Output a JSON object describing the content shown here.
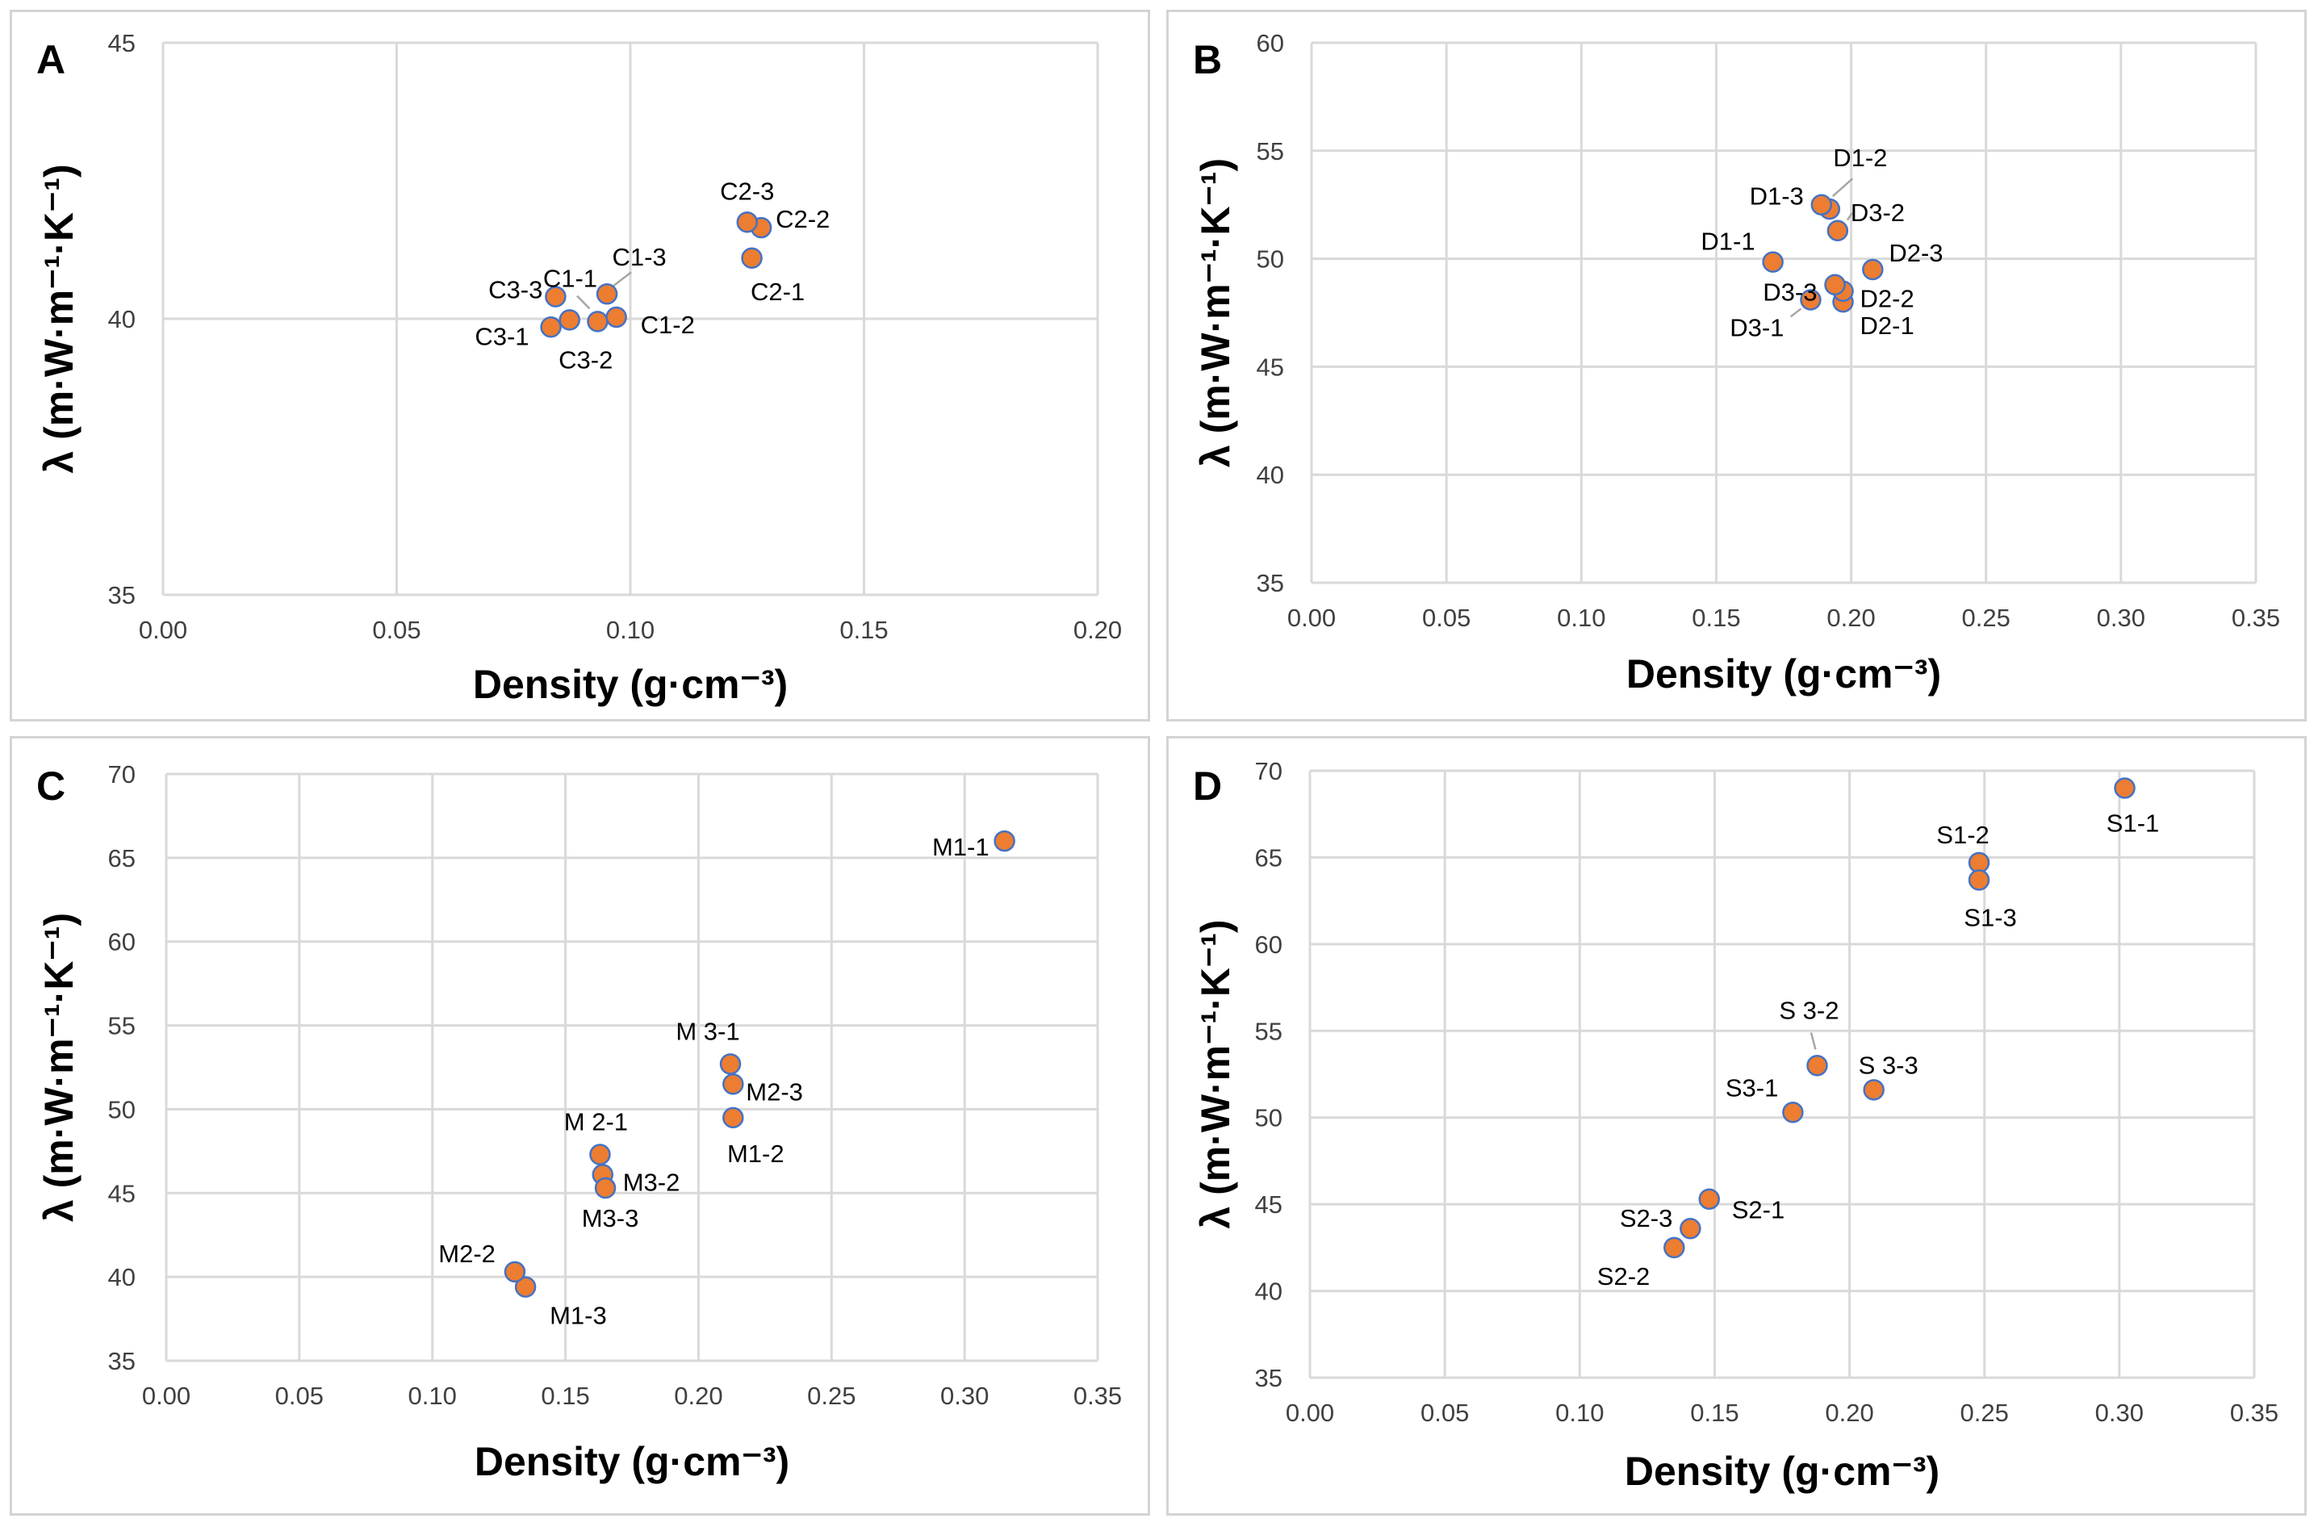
{
  "chart_data": [
    {
      "panel": "A",
      "type": "scatter",
      "xlabel": "Density (g·cm⁻³)",
      "ylabel": "λ (m·W·m⁻¹·K⁻¹)",
      "xlim": [
        0,
        0.2
      ],
      "ylim": [
        35,
        45
      ],
      "xticks": [
        "0.00",
        "0.05",
        "0.10",
        "0.15",
        "0.20"
      ],
      "yticks": [
        "35",
        "40",
        "45"
      ],
      "points": [
        {
          "label": "C1-1",
          "x": 0.093,
          "y": 39.95
        },
        {
          "label": "C1-2",
          "x": 0.097,
          "y": 40.03
        },
        {
          "label": "C1-3",
          "x": 0.095,
          "y": 40.45
        },
        {
          "label": "C2-1",
          "x": 0.126,
          "y": 41.1
        },
        {
          "label": "C2-2",
          "x": 0.128,
          "y": 41.65
        },
        {
          "label": "C2-3",
          "x": 0.125,
          "y": 41.75
        },
        {
          "label": "C3-1",
          "x": 0.083,
          "y": 39.85
        },
        {
          "label": "C3-2",
          "x": 0.087,
          "y": 39.98
        },
        {
          "label": "C3-3",
          "x": 0.084,
          "y": 40.4
        }
      ]
    },
    {
      "panel": "B",
      "type": "scatter",
      "xlabel": "Density (g·cm⁻³)",
      "ylabel": "λ (m·W·m⁻¹·K⁻¹)",
      "xlim": [
        0,
        0.35
      ],
      "ylim": [
        35,
        60
      ],
      "xticks": [
        "0.00",
        "0.05",
        "0.10",
        "0.15",
        "0.20",
        "0.25",
        "0.30",
        "0.35"
      ],
      "yticks": [
        "35",
        "40",
        "45",
        "50",
        "55",
        "60"
      ],
      "points": [
        {
          "label": "D1-1",
          "x": 0.171,
          "y": 49.85
        },
        {
          "label": "D1-2",
          "x": 0.192,
          "y": 52.3
        },
        {
          "label": "D1-3",
          "x": 0.189,
          "y": 52.5
        },
        {
          "label": "D2-1",
          "x": 0.197,
          "y": 48.0
        },
        {
          "label": "D2-2",
          "x": 0.197,
          "y": 48.5
        },
        {
          "label": "D2-3",
          "x": 0.208,
          "y": 49.5
        },
        {
          "label": "D3-1",
          "x": 0.185,
          "y": 48.1
        },
        {
          "label": "D3-2",
          "x": 0.195,
          "y": 51.3
        },
        {
          "label": "D3-3",
          "x": 0.194,
          "y": 48.8
        }
      ]
    },
    {
      "panel": "C",
      "type": "scatter",
      "xlabel": "Density (g·cm⁻³)",
      "ylabel": "λ (m·W·m⁻¹·K⁻¹)",
      "xlim": [
        0,
        0.35
      ],
      "ylim": [
        35,
        70
      ],
      "xticks": [
        "0.00",
        "0.05",
        "0.10",
        "0.15",
        "0.20",
        "0.25",
        "0.30",
        "0.35"
      ],
      "yticks": [
        "35",
        "40",
        "45",
        "50",
        "55",
        "60",
        "65",
        "70"
      ],
      "points": [
        {
          "label": "M1-1",
          "x": 0.315,
          "y": 66.0
        },
        {
          "label": "M1-2",
          "x": 0.213,
          "y": 49.5
        },
        {
          "label": "M1-3",
          "x": 0.135,
          "y": 39.4
        },
        {
          "label": "M2-2",
          "x": 0.131,
          "y": 40.3
        },
        {
          "label": "M2-3",
          "x": 0.213,
          "y": 51.5
        },
        {
          "label": "M 3-1",
          "x": 0.212,
          "y": 52.7
        },
        {
          "label": "M 2-1",
          "x": 0.163,
          "y": 47.3
        },
        {
          "label": "M3-2",
          "x": 0.164,
          "y": 46.1
        },
        {
          "label": "M3-3",
          "x": 0.165,
          "y": 45.3
        }
      ]
    },
    {
      "panel": "D",
      "type": "scatter",
      "xlabel": "Density (g·cm⁻³)",
      "ylabel": "λ (m·W·m⁻¹·K⁻¹)",
      "xlim": [
        0,
        0.35
      ],
      "ylim": [
        35,
        70
      ],
      "xticks": [
        "0.00",
        "0.05",
        "0.10",
        "0.15",
        "0.20",
        "0.25",
        "0.30",
        "0.35"
      ],
      "yticks": [
        "35",
        "40",
        "45",
        "50",
        "55",
        "60",
        "65",
        "70"
      ],
      "points": [
        {
          "label": "S1-1",
          "x": 0.302,
          "y": 69.0
        },
        {
          "label": "S1-2",
          "x": 0.248,
          "y": 64.7
        },
        {
          "label": "S1-3",
          "x": 0.248,
          "y": 63.7
        },
        {
          "label": "S2-1",
          "x": 0.148,
          "y": 45.3
        },
        {
          "label": "S2-2",
          "x": 0.135,
          "y": 42.5
        },
        {
          "label": "S2-3",
          "x": 0.141,
          "y": 43.6
        },
        {
          "label": "S3-1",
          "x": 0.179,
          "y": 50.3
        },
        {
          "label": "S 3-2",
          "x": 0.188,
          "y": 53.0
        },
        {
          "label": "S 3-3",
          "x": 0.209,
          "y": 51.6
        }
      ]
    }
  ]
}
